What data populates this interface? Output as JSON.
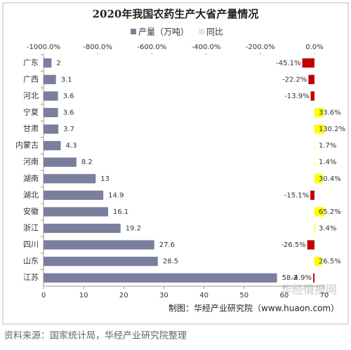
{
  "chart_data": {
    "type": "bar",
    "orientation": "horizontal",
    "title": "2020年我国农药生产大省产量情况",
    "categories": [
      "广东",
      "广西",
      "河北",
      "宁夏",
      "甘肃",
      "内蒙古",
      "河南",
      "湖南",
      "湖北",
      "安徽",
      "浙江",
      "四川",
      "山东",
      "江苏"
    ],
    "series": [
      {
        "name": "产量（万吨）",
        "color": "#7b7f9e",
        "values": [
          2,
          3.1,
          3.6,
          3.6,
          3.7,
          4.3,
          8.2,
          13,
          14.9,
          16.1,
          19.2,
          27.6,
          28.5,
          58.2
        ]
      },
      {
        "name": "同比",
        "axis": "x2",
        "color": "#dce6f2",
        "negative_color": "#c00000",
        "positive_color": "#ffff00",
        "values": [
          -45.1,
          -22.2,
          -13.9,
          33.6,
          130.2,
          1.7,
          1.4,
          30.4,
          -15.1,
          65.2,
          3.4,
          -26.5,
          26.5,
          -4.9
        ],
        "value_labels": [
          "-45.1%",
          "-22.2%",
          "-13.9%",
          "33.6%",
          "130.2%",
          "1.7%",
          "1.4%",
          "30.4%",
          "-15.1%",
          "65.2%",
          "3.4%",
          "-26.5%",
          "26.5%",
          "-4.9%"
        ]
      }
    ],
    "xlim": [
      0,
      70
    ],
    "xticks": [
      0,
      10,
      20,
      30,
      40,
      50,
      60,
      70
    ],
    "x2lim": [
      -1000,
      36.4
    ],
    "x2ticks": [
      {
        "value": -1000,
        "label": "-1000.0%"
      },
      {
        "value": -800,
        "label": "-800.0%"
      },
      {
        "value": -600,
        "label": "-600.0%"
      },
      {
        "value": -400,
        "label": "-400.0%"
      },
      {
        "value": -200,
        "label": "-200.0%"
      },
      {
        "value": 0,
        "label": "0.0%"
      }
    ],
    "credit": "制图：华经产业研究院（www.huaon.com）",
    "watermark": "华经情报网"
  },
  "source": "资料来源：国家统计局，华经产业研究院整理"
}
